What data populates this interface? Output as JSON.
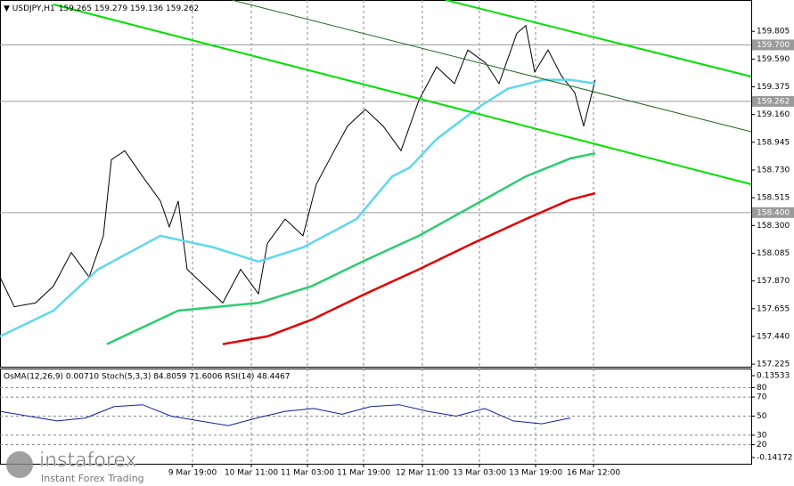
{
  "header": {
    "symbol": "USDJPY,H1",
    "ohlc": "159.265 159.279 159.136 159.262"
  },
  "chart_data": [
    {
      "type": "line",
      "ylim": [
        157.205,
        160.048
      ],
      "yticks": [
        157.225,
        {
          "value": 157.44,
          "label": "157.440"
        },
        157.655,
        {
          "value": 157.87,
          "label": "157.870"
        },
        158.085,
        {
          "value": 158.3,
          "label": "158.300"
        },
        158.515,
        {
          "value": 158.73,
          "label": "158.730"
        },
        158.945,
        {
          "value": 159.16,
          "label": "159.160"
        },
        159.375,
        {
          "value": 159.59,
          "label": "159.590"
        },
        159.805
      ],
      "levels": [
        {
          "value": 159.7,
          "label": "159.700"
        },
        159.262,
        {
          "value": 158.4,
          "label": "158.400"
        }
      ],
      "xlim": [
        0,
        210.75
      ],
      "xticks": [
        {
          "value": 54,
          "label": "9 Mar 19:00"
        },
        {
          "value": 70.5,
          "label": "10 Mar 11:00"
        },
        {
          "value": 86.25,
          "label": "11 Mar 03:00"
        },
        {
          "value": 102,
          "label": "11 Mar 19:00"
        },
        {
          "value": 118.5,
          "label": "12 Mar 11:00"
        },
        {
          "value": 134.5,
          "label": "13 Mar 03:00"
        },
        {
          "value": 150.25,
          "label": "13 Mar 19:00"
        },
        {
          "value": 166.5,
          "label": "16 Mar 12:00"
        }
      ],
      "grid": true,
      "series": [
        {
          "color": "#000000",
          "x": [
            0,
            4,
            10,
            15,
            20,
            25,
            29,
            31.25,
            35,
            40,
            45,
            47.5,
            50,
            52.5,
            57.5,
            62.5,
            67.5,
            72.5,
            75,
            80,
            85,
            88.75,
            93.75,
            97.5,
            102.5,
            107.5,
            112.5,
            117.5,
            122.5,
            127.5,
            131.25,
            136.25,
            140,
            145,
            147.5,
            150,
            153.75,
            157.5,
            161.25,
            163.75,
            167
          ],
          "values": [
            157.9,
            157.67,
            157.7,
            157.83,
            158.09,
            157.9,
            158.22,
            158.81,
            158.88,
            158.68,
            158.49,
            158.29,
            158.49,
            157.96,
            157.83,
            157.7,
            157.96,
            157.77,
            158.16,
            158.35,
            158.22,
            158.62,
            158.88,
            159.07,
            159.2,
            159.07,
            158.88,
            159.27,
            159.53,
            159.4,
            159.66,
            159.56,
            159.4,
            159.79,
            159.85,
            159.49,
            159.66,
            159.46,
            159.33,
            159.07,
            159.43
          ]
        },
        {
          "color": "#5fd7ee",
          "x": [
            0,
            15,
            27.5,
            45,
            60,
            72.5,
            85,
            100,
            110,
            115,
            122.5,
            135,
            142.5,
            152.5,
            160,
            167
          ],
          "values": [
            157.44,
            157.64,
            157.96,
            158.22,
            158.13,
            158.02,
            158.13,
            158.35,
            158.68,
            158.75,
            158.97,
            159.23,
            159.36,
            159.43,
            159.43,
            159.4
          ]
        },
        {
          "color": "#2ecc71",
          "x": [
            30,
            50,
            72.5,
            87.5,
            102.5,
            117.5,
            132.5,
            147.5,
            160,
            167
          ],
          "values": [
            157.38,
            157.64,
            157.7,
            157.83,
            158.03,
            158.22,
            158.45,
            158.68,
            158.82,
            158.86
          ]
        },
        {
          "color": "#e00000",
          "x": [
            62.5,
            75,
            87.5,
            102.5,
            117.5,
            132.5,
            147.5,
            160,
            167
          ],
          "values": [
            157.38,
            157.44,
            157.57,
            157.77,
            157.96,
            158.16,
            158.35,
            158.5,
            158.55
          ]
        }
      ]
    },
    {
      "type": "line",
      "title": "OsMA(12,26,9) 0.00710 Stoch(5,3,3) 84.8059 71.6006 RSI(14) 48.4467",
      "ylim": [
        0,
        100
      ],
      "yticks": [
        80,
        70,
        50,
        30,
        20
      ],
      "y2lim": [
        -0.1628,
        0.1594
      ],
      "y2ticks": [
        0.13533,
        -0.14172
      ],
      "xlim": [
        0,
        210.75
      ],
      "series": [
        {
          "color": "#0b1f9c",
          "x": [
            0,
            8,
            16,
            24,
            32,
            40,
            48,
            56,
            64,
            72,
            80,
            88,
            96,
            104,
            112,
            120,
            128,
            136,
            144,
            152,
            160
          ],
          "values": [
            55,
            50,
            45,
            48,
            60,
            62,
            50,
            45,
            40,
            48,
            55,
            58,
            52,
            60,
            62,
            55,
            50,
            58,
            45,
            42,
            48
          ]
        }
      ]
    }
  ],
  "watermark": {
    "brand": "instaforex",
    "tagline": "Instant Forex Trading"
  }
}
